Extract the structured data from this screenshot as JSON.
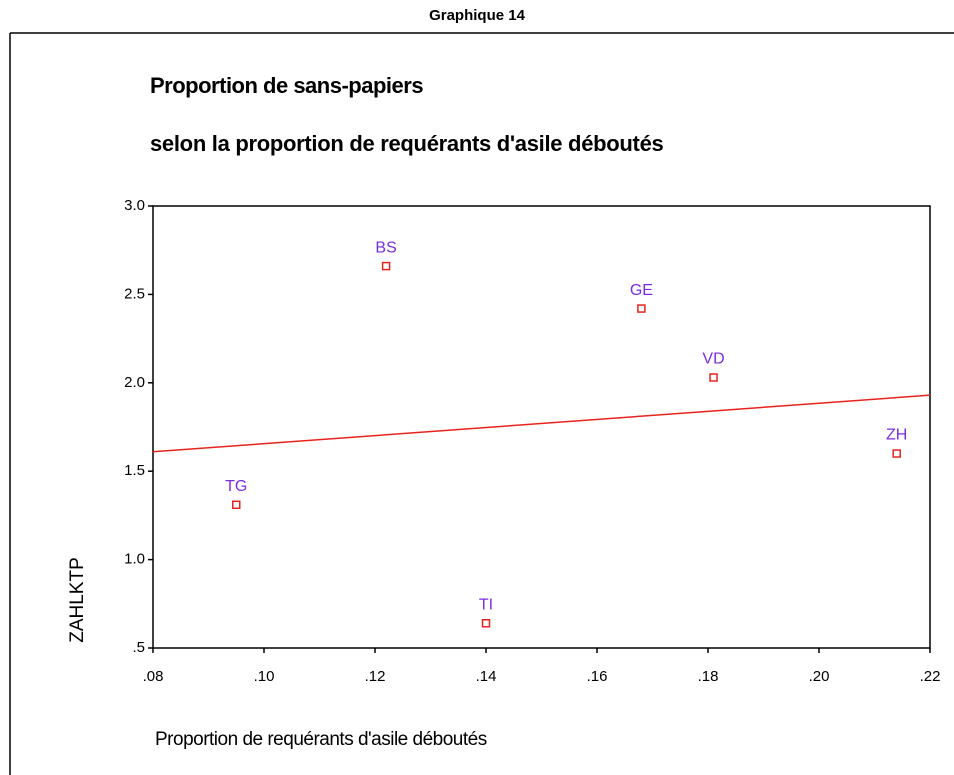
{
  "chart_data": {
    "type": "scatter",
    "figure_label": "Graphique 14",
    "title": "Proportion de sans-papiers",
    "subtitle": "selon la proportion de requérants d'asile déboutés",
    "x_label": "Proportion de requérants d'asile déboutés",
    "y_label": "ZAHLKTP",
    "point_labels": [
      "BS",
      "GE",
      "VD",
      "ZH",
      "TG",
      "TI"
    ],
    "x": [
      0.122,
      0.168,
      0.181,
      0.214,
      0.095,
      0.14
    ],
    "y": [
      2.66,
      2.42,
      2.03,
      1.6,
      1.31,
      0.64
    ],
    "marker_color": "#e8231e",
    "fit_line": {
      "x": [
        0.08,
        0.22
      ],
      "y": [
        1.61,
        1.93
      ],
      "color": "#e8231e"
    },
    "xlim": [
      0.08,
      0.22
    ],
    "ylim": [
      0.5,
      3.0
    ],
    "xticks": [
      {
        "value": 0.08,
        "label": ".08"
      },
      {
        "value": 0.1,
        "label": ".10"
      },
      {
        "value": 0.12,
        "label": ".12"
      },
      {
        "value": 0.14,
        "label": ".14"
      },
      {
        "value": 0.16,
        "label": ".16"
      },
      {
        "value": 0.18,
        "label": ".18"
      },
      {
        "value": 0.2,
        "label": ".20"
      },
      {
        "value": 0.22,
        "label": ".22"
      }
    ],
    "yticks": [
      {
        "value": 0.5,
        "label": ".5"
      },
      {
        "value": 1.0,
        "label": "1.0"
      },
      {
        "value": 1.5,
        "label": "1.5"
      },
      {
        "value": 2.0,
        "label": "2.0"
      },
      {
        "value": 2.5,
        "label": "2.5"
      },
      {
        "value": 3.0,
        "label": "3.0"
      }
    ]
  }
}
